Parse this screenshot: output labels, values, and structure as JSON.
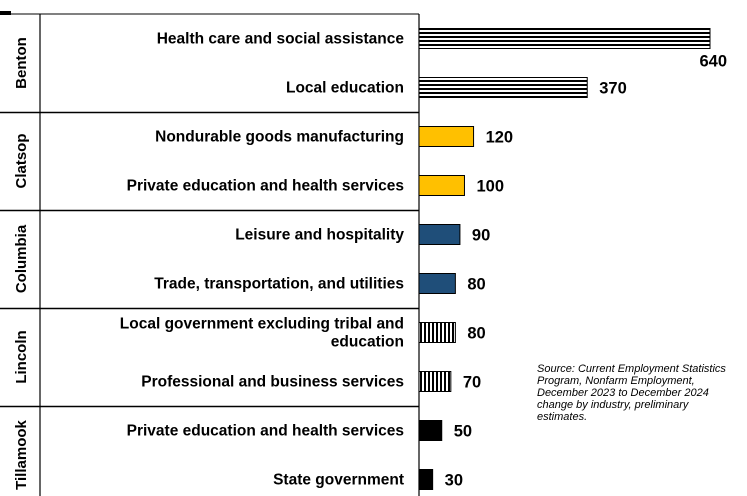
{
  "chart_data": {
    "type": "bar",
    "orientation": "horizontal",
    "groups": [
      {
        "name": "Benton",
        "pattern": "horizontal-stripes",
        "color": "#000000",
        "bars": [
          {
            "category": "Health care and social assistance",
            "value": 640,
            "label": "640"
          },
          {
            "category": "Local education",
            "value": 370,
            "label": "370"
          }
        ]
      },
      {
        "name": "Clatsop",
        "pattern": "solid",
        "color": "#FFC000",
        "bars": [
          {
            "category": "Nondurable goods manufacturing",
            "value": 120,
            "label": "120"
          },
          {
            "category": "Private education and health services",
            "value": 100,
            "label": "100"
          }
        ]
      },
      {
        "name": "Columbia",
        "pattern": "solid",
        "color": "#1F4E79",
        "bars": [
          {
            "category": "Leisure and hospitality",
            "value": 90,
            "label": "90"
          },
          {
            "category": "Trade, transportation, and utilities",
            "value": 80,
            "label": "80"
          }
        ]
      },
      {
        "name": "Lincoln",
        "pattern": "vertical-stripes",
        "color": "#000000",
        "bars": [
          {
            "category": "Local government excluding tribal and\neducation",
            "value": 80,
            "label": "80"
          },
          {
            "category": "Professional and business services",
            "value": 70,
            "label": "70"
          }
        ]
      },
      {
        "name": "Tillamook",
        "pattern": "solid",
        "color": "#000000",
        "bars": [
          {
            "category": "Private education and health services",
            "value": 50,
            "label": "50"
          },
          {
            "category": "State government",
            "value": 30,
            "label": "30"
          }
        ]
      }
    ],
    "xlim": [
      0,
      640
    ],
    "grid": false,
    "legend": "none"
  },
  "source_note": "Source: Current Employment Statistics Program, Nonfarm Employment, December 2023 to December 2024 change by industry, preliminary estimates."
}
